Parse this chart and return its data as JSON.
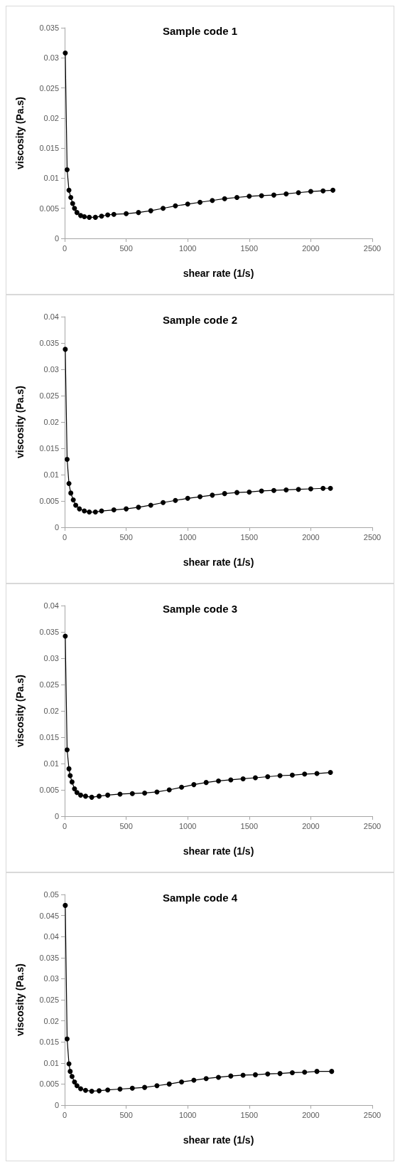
{
  "chart_data": [
    {
      "type": "line",
      "title": "Sample code 1",
      "xlabel": "shear rate (1/s)",
      "ylabel": "viscosity (Pa.s)",
      "marker": "circle",
      "line_style": "solid",
      "grid": false,
      "xlim": [
        0,
        2500
      ],
      "xticks": [
        0,
        500,
        1000,
        1500,
        2000,
        2500
      ],
      "ylim": [
        0,
        0.035
      ],
      "yticks": [
        0,
        0.005,
        0.01,
        0.015,
        0.02,
        0.025,
        0.03,
        0.035
      ],
      "series": [
        {
          "color": "#000000",
          "x": [
            5,
            20,
            35,
            50,
            65,
            80,
            100,
            130,
            160,
            200,
            250,
            300,
            350,
            400,
            500,
            600,
            700,
            800,
            900,
            1000,
            1100,
            1200,
            1300,
            1400,
            1500,
            1600,
            1700,
            1800,
            1900,
            2000,
            2100,
            2180
          ],
          "values": [
            0.0308,
            0.0114,
            0.008,
            0.0068,
            0.0058,
            0.005,
            0.0043,
            0.0038,
            0.0036,
            0.0035,
            0.0035,
            0.0037,
            0.0039,
            0.004,
            0.0041,
            0.0043,
            0.0046,
            0.005,
            0.0054,
            0.0057,
            0.006,
            0.0063,
            0.0066,
            0.0068,
            0.007,
            0.0071,
            0.0072,
            0.0074,
            0.0076,
            0.0078,
            0.0079,
            0.008
          ]
        }
      ]
    },
    {
      "type": "line",
      "title": "Sample code 2",
      "xlabel": "shear rate (1/s)",
      "ylabel": "viscosity (Pa.s)",
      "marker": "circle",
      "line_style": "solid",
      "grid": false,
      "xlim": [
        0,
        2500
      ],
      "xticks": [
        0,
        500,
        1000,
        1500,
        2000,
        2500
      ],
      "ylim": [
        0,
        0.04
      ],
      "yticks": [
        0,
        0.005,
        0.01,
        0.015,
        0.02,
        0.025,
        0.03,
        0.035,
        0.04
      ],
      "series": [
        {
          "color": "#000000",
          "x": [
            5,
            20,
            35,
            50,
            70,
            90,
            120,
            160,
            200,
            250,
            300,
            400,
            500,
            600,
            700,
            800,
            900,
            1000,
            1100,
            1200,
            1300,
            1400,
            1500,
            1600,
            1700,
            1800,
            1900,
            2000,
            2100,
            2160
          ],
          "values": [
            0.0338,
            0.0129,
            0.0083,
            0.0065,
            0.0052,
            0.0042,
            0.0035,
            0.0031,
            0.0029,
            0.0029,
            0.0031,
            0.0033,
            0.0035,
            0.0038,
            0.0042,
            0.0047,
            0.0051,
            0.0055,
            0.0058,
            0.0061,
            0.0064,
            0.0066,
            0.0067,
            0.0069,
            0.007,
            0.0071,
            0.0072,
            0.0073,
            0.0074,
            0.0074
          ]
        }
      ]
    },
    {
      "type": "line",
      "title": "Sample code 3",
      "xlabel": "shear rate (1/s)",
      "ylabel": "viscosity (Pa.s)",
      "marker": "circle",
      "line_style": "solid",
      "grid": false,
      "xlim": [
        0,
        2500
      ],
      "xticks": [
        0,
        500,
        1000,
        1500,
        2000,
        2500
      ],
      "ylim": [
        0,
        0.04
      ],
      "yticks": [
        0,
        0.005,
        0.01,
        0.015,
        0.02,
        0.025,
        0.03,
        0.035,
        0.04
      ],
      "series": [
        {
          "color": "#000000",
          "x": [
            5,
            20,
            35,
            45,
            60,
            80,
            100,
            130,
            170,
            220,
            280,
            350,
            450,
            550,
            650,
            750,
            850,
            950,
            1050,
            1150,
            1250,
            1350,
            1450,
            1550,
            1650,
            1750,
            1850,
            1950,
            2050,
            2160
          ],
          "values": [
            0.0342,
            0.0126,
            0.009,
            0.0077,
            0.0065,
            0.0052,
            0.0045,
            0.004,
            0.0038,
            0.0036,
            0.0038,
            0.004,
            0.0042,
            0.0043,
            0.0044,
            0.0046,
            0.005,
            0.0055,
            0.006,
            0.0064,
            0.0067,
            0.0069,
            0.0071,
            0.0073,
            0.0075,
            0.0077,
            0.0078,
            0.008,
            0.0081,
            0.0083
          ]
        }
      ]
    },
    {
      "type": "line",
      "title": "Sample code 4",
      "xlabel": "shear rate (1/s)",
      "ylabel": "viscosity (Pa.s)",
      "marker": "circle",
      "line_style": "solid",
      "grid": false,
      "xlim": [
        0,
        2500
      ],
      "xticks": [
        0,
        500,
        1000,
        1500,
        2000,
        2500
      ],
      "ylim": [
        0,
        0.05
      ],
      "yticks": [
        0,
        0.005,
        0.01,
        0.015,
        0.02,
        0.025,
        0.03,
        0.035,
        0.04,
        0.045,
        0.05
      ],
      "series": [
        {
          "color": "#000000",
          "x": [
            5,
            20,
            35,
            45,
            60,
            80,
            100,
            130,
            170,
            220,
            280,
            350,
            450,
            550,
            650,
            750,
            850,
            950,
            1050,
            1150,
            1250,
            1350,
            1450,
            1550,
            1650,
            1750,
            1850,
            1950,
            2050,
            2170
          ],
          "values": [
            0.0474,
            0.0157,
            0.0098,
            0.008,
            0.0068,
            0.0055,
            0.0046,
            0.0039,
            0.0035,
            0.0033,
            0.0034,
            0.0036,
            0.0038,
            0.004,
            0.0042,
            0.0046,
            0.005,
            0.0055,
            0.0059,
            0.0063,
            0.0066,
            0.0069,
            0.0071,
            0.0072,
            0.0074,
            0.0075,
            0.0077,
            0.0078,
            0.008,
            0.008
          ]
        }
      ]
    }
  ]
}
